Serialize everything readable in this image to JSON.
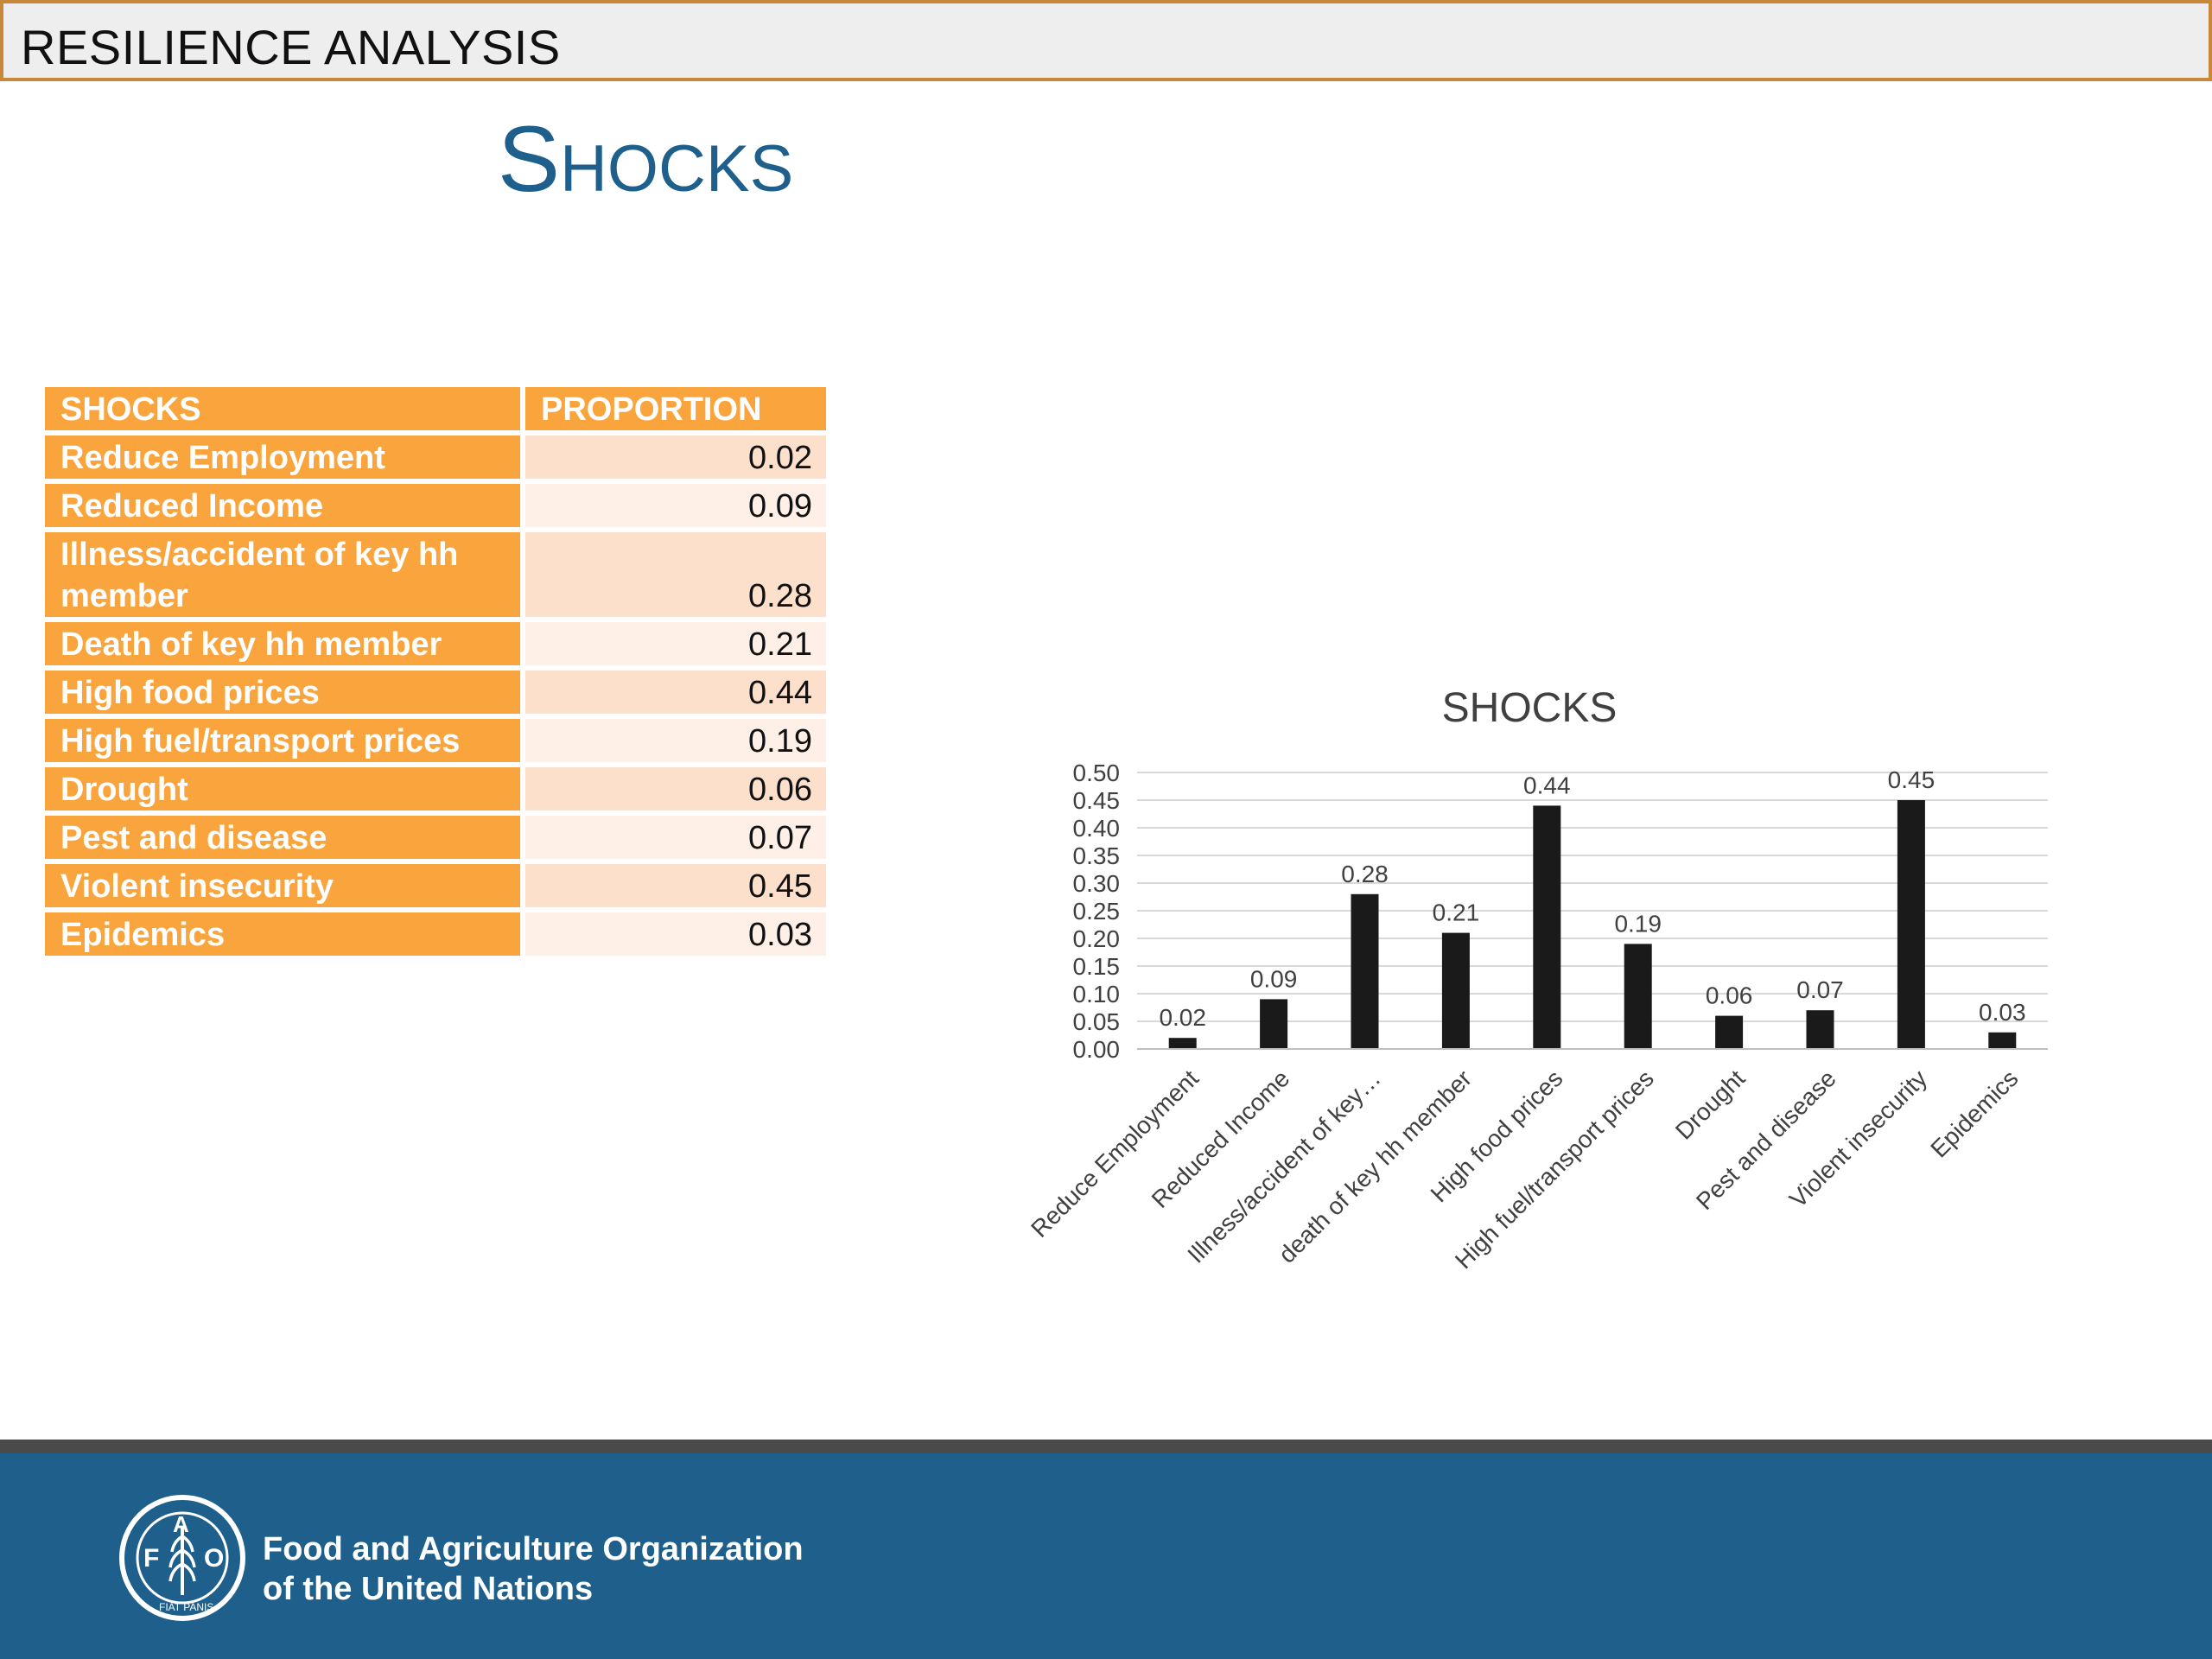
{
  "header": {
    "title": "RESILIENCE ANALYSIS"
  },
  "page": {
    "title": "Shocks"
  },
  "table": {
    "headers": [
      "SHOCKS",
      "PROPORTION"
    ],
    "rows": [
      {
        "label": "Reduce Employment",
        "value": "0.02"
      },
      {
        "label": "Reduced Income",
        "value": "0.09"
      },
      {
        "label": "Illness/accident of key hh member",
        "value": "0.28"
      },
      {
        "label": "Death of key hh member",
        "value": "0.21"
      },
      {
        "label": "High food prices",
        "value": "0.44"
      },
      {
        "label": "High fuel/transport prices",
        "value": "0.19"
      },
      {
        "label": "Drought",
        "value": "0.06"
      },
      {
        "label": "Pest and disease",
        "value": "0.07"
      },
      {
        "label": "Violent insecurity",
        "value": "0.45"
      },
      {
        "label": "Epidemics",
        "value": "0.03"
      }
    ]
  },
  "chart_data": {
    "type": "bar",
    "title": "SHOCKS",
    "xlabel": "",
    "ylabel": "",
    "categories": [
      "Reduce Employment",
      "Reduced Income",
      "Illness/accident of key…",
      "death of key hh member",
      "High food prices",
      "High fuel/transport prices",
      "Drought",
      "Pest and disease",
      "Violent insecurity",
      "Epidemics"
    ],
    "values": [
      0.02,
      0.09,
      0.28,
      0.21,
      0.44,
      0.19,
      0.06,
      0.07,
      0.45,
      0.03
    ],
    "data_labels": [
      "0.02",
      "0.09",
      "0.28",
      "0.21",
      "0.44",
      "0.19",
      "0.06",
      "0.07",
      "0.45",
      "0.03"
    ],
    "ylim": [
      0,
      0.5
    ],
    "yticks": [
      "0.00",
      "0.05",
      "0.10",
      "0.15",
      "0.20",
      "0.25",
      "0.30",
      "0.35",
      "0.40",
      "0.45",
      "0.50"
    ],
    "grid": true,
    "legend": "none",
    "colors": {
      "bar": "#1a1a1a",
      "grid": "#d9d9d9",
      "text": "#404040"
    }
  },
  "footer": {
    "org_line1": "Food and Agriculture Organization",
    "org_line2": "of the United Nations",
    "logo_letters": [
      "F",
      "A",
      "O"
    ],
    "logo_motto": "FIAT PANIS"
  }
}
